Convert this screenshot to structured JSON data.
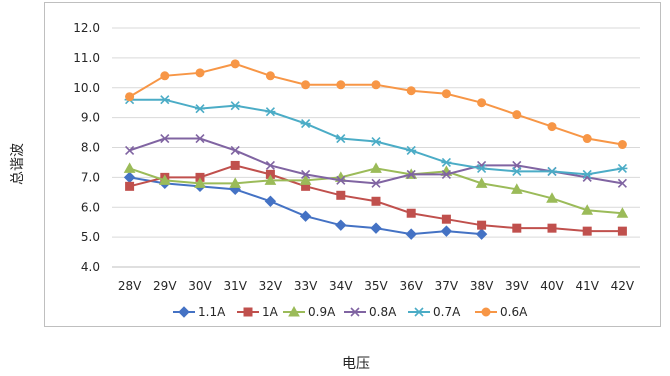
{
  "chart_data": {
    "type": "line",
    "title": "",
    "xlabel": "电压",
    "ylabel": "总谐波",
    "categories": [
      "28V",
      "29V",
      "30V",
      "31V",
      "32V",
      "33V",
      "34V",
      "35V",
      "36V",
      "37V",
      "38V",
      "39V",
      "40V",
      "41V",
      "42V"
    ],
    "ylim": [
      4.0,
      12.0
    ],
    "yticks": [
      "4.0",
      "5.0",
      "6.0",
      "7.0",
      "8.0",
      "9.0",
      "10.0",
      "11.0",
      "12.0"
    ],
    "grid": true,
    "legend_position": "bottom",
    "series": [
      {
        "name": "1.1A",
        "color": "#4472c4",
        "marker": "diamond",
        "values": [
          7.0,
          6.8,
          6.7,
          6.6,
          6.2,
          5.7,
          5.4,
          5.3,
          5.1,
          5.2,
          5.1,
          null,
          null,
          null,
          null
        ]
      },
      {
        "name": "1A",
        "color": "#c0504d",
        "marker": "square",
        "values": [
          6.7,
          7.0,
          7.0,
          7.4,
          7.1,
          6.7,
          6.4,
          6.2,
          5.8,
          5.6,
          5.4,
          5.3,
          5.3,
          5.2,
          5.2
        ]
      },
      {
        "name": "0.9A",
        "color": "#9bbb59",
        "marker": "triangle",
        "values": [
          7.3,
          6.9,
          6.8,
          6.8,
          6.9,
          6.9,
          7.0,
          7.3,
          7.1,
          7.2,
          6.8,
          6.6,
          6.3,
          5.9,
          5.8
        ]
      },
      {
        "name": "0.8A",
        "color": "#8064a2",
        "marker": "x",
        "values": [
          7.9,
          8.3,
          8.3,
          7.9,
          7.4,
          7.1,
          6.9,
          6.8,
          7.1,
          7.1,
          7.4,
          7.4,
          7.2,
          7.0,
          6.8
        ]
      },
      {
        "name": "0.7A",
        "color": "#4bacc6",
        "marker": "star",
        "values": [
          9.6,
          9.6,
          9.3,
          9.4,
          9.2,
          8.8,
          8.3,
          8.2,
          7.9,
          7.5,
          7.3,
          7.2,
          7.2,
          7.1,
          7.3
        ]
      },
      {
        "name": "0.6A",
        "color": "#f79646",
        "marker": "circle",
        "values": [
          9.7,
          10.4,
          10.5,
          10.8,
          10.4,
          10.1,
          10.1,
          10.1,
          9.9,
          9.8,
          9.5,
          9.1,
          8.7,
          8.3,
          8.1
        ]
      }
    ]
  }
}
